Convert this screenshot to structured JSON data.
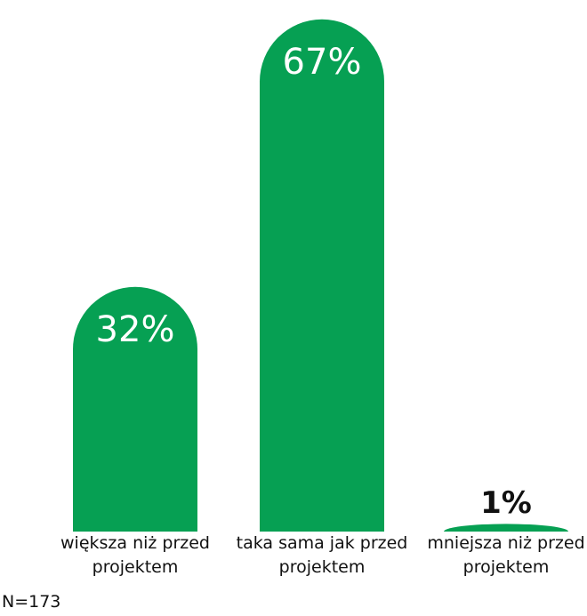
{
  "chart_data": {
    "type": "bar",
    "categories": [
      "większa niż przed projektem",
      "taka sama jak przed projektem",
      "mniejsza niż przed projektem"
    ],
    "values": [
      32,
      67,
      1
    ],
    "value_labels": [
      "32%",
      "67%",
      "1%"
    ],
    "color": "#06a053",
    "note": "N=173"
  }
}
